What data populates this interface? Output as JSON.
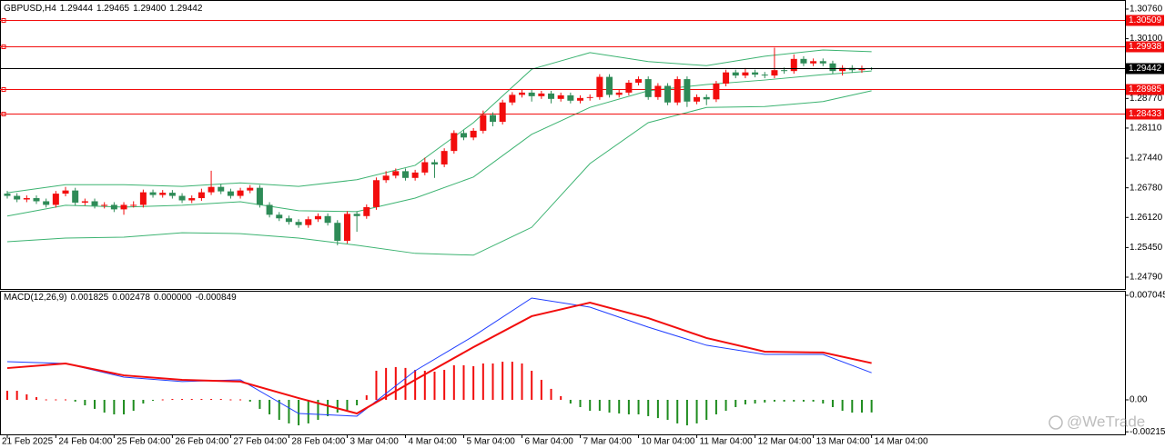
{
  "chart_data": [
    {
      "type": "candlestick",
      "header": {
        "symbol": "GBPUSD,H4",
        "values": [
          1.29444,
          1.29465,
          {
            "value": 1.294,
            "label": "1.29400"
          },
          1.29442
        ]
      },
      "categories": [
        "21 Feb 2025",
        null,
        null,
        null,
        null,
        "24 Feb 04:00",
        null,
        null,
        null,
        null,
        null,
        "25 Feb 04:00",
        null,
        null,
        null,
        null,
        null,
        "26 Feb 04:00",
        null,
        null,
        null,
        null,
        null,
        "27 Feb 04:00",
        null,
        null,
        null,
        null,
        null,
        "28 Feb 04:00",
        null,
        null,
        null,
        null,
        null,
        "3 Mar 04:00",
        null,
        null,
        null,
        null,
        null,
        "4 Mar 04:00",
        null,
        null,
        null,
        null,
        null,
        "5 Mar 04:00",
        null,
        null,
        null,
        null,
        null,
        "6 Mar 04:00",
        null,
        null,
        null,
        null,
        null,
        "7 Mar 04:00",
        null,
        null,
        null,
        null,
        null,
        "10 Mar 04:00",
        null,
        null,
        null,
        null,
        null,
        "11 Mar 04:00",
        null,
        null,
        null,
        null,
        null,
        "12 Mar 04:00",
        null,
        null,
        null,
        null,
        null,
        "13 Mar 04:00",
        null,
        null,
        null,
        null,
        null,
        "14 Mar 04:00"
      ],
      "ohlc": {
        "open": [
          1.2665,
          1.266,
          1.2652,
          1.2655,
          1.2648,
          1.264,
          1.2665,
          1.2672,
          1.2645,
          1.2648,
          1.2638,
          1.264,
          1.263,
          1.264,
          1.264,
          1.2668,
          1.2662,
          1.2667,
          1.266,
          1.265,
          1.2655,
          1.2668,
          1.268,
          1.267,
          1.266,
          1.2672,
          1.2678,
          1.264,
          1.2618,
          1.261,
          1.2602,
          1.2595,
          1.2608,
          1.2615,
          1.26,
          1.256,
          1.262,
          1.2615,
          1.2635,
          1.2695,
          1.2705,
          1.2715,
          1.27,
          1.2712,
          1.2735,
          1.273,
          1.276,
          1.28,
          1.279,
          1.2805,
          1.284,
          1.2825,
          1.2868,
          1.2885,
          1.289,
          1.2882,
          1.2888,
          1.2876,
          1.2884,
          1.2872,
          1.2878,
          1.288,
          1.2925,
          1.2885,
          1.289,
          1.2912,
          1.292,
          1.288,
          1.2905,
          1.2868,
          1.292,
          1.287,
          1.288,
          1.2875,
          1.291,
          1.2935,
          1.2928,
          1.2935,
          1.293,
          1.2928,
          1.294,
          1.2938,
          1.2965,
          1.2955,
          1.296,
          1.2955,
          1.2938,
          1.2945,
          1.294,
          1.29444
        ],
        "high": [
          1.2671,
          1.2666,
          1.2661,
          1.2661,
          1.2654,
          1.2671,
          1.268,
          1.2678,
          1.2654,
          1.2654,
          1.2646,
          1.2646,
          1.2646,
          1.2648,
          1.2674,
          1.2674,
          1.2673,
          1.2673,
          1.2666,
          1.2661,
          1.2676,
          1.2716,
          1.2686,
          1.2676,
          1.2678,
          1.2684,
          1.2684,
          1.2646,
          1.2624,
          1.2616,
          1.2608,
          1.2614,
          1.2621,
          1.2621,
          1.2606,
          1.2626,
          1.2626,
          1.2641,
          1.2701,
          1.2715,
          1.2721,
          1.2721,
          1.2718,
          1.2745,
          1.2741,
          1.2766,
          1.2806,
          1.2806,
          1.2811,
          1.285,
          1.2846,
          1.2874,
          1.2891,
          1.2896,
          1.2896,
          1.2894,
          1.2894,
          1.289,
          1.289,
          1.2884,
          1.2886,
          1.2931,
          1.2931,
          1.2896,
          1.2918,
          1.2926,
          1.2926,
          1.2911,
          1.2911,
          1.2926,
          1.2926,
          1.2886,
          1.2886,
          1.2916,
          1.2941,
          1.2941,
          1.2945,
          1.2941,
          1.2936,
          1.299,
          1.2946,
          1.2975,
          1.2971,
          1.2966,
          1.2966,
          1.2961,
          1.2951,
          1.2951,
          1.295,
          1.29465
        ],
        "low": [
          1.2654,
          1.2646,
          1.2646,
          1.2642,
          1.2634,
          1.2634,
          1.2659,
          1.2639,
          1.2639,
          1.2632,
          1.2632,
          1.2624,
          1.2618,
          1.2634,
          1.2634,
          1.2656,
          1.2656,
          1.2654,
          1.2644,
          1.2644,
          1.2649,
          1.2662,
          1.2664,
          1.2654,
          1.2654,
          1.2666,
          1.2634,
          1.2612,
          1.2604,
          1.2596,
          1.2589,
          1.2589,
          1.2602,
          1.2594,
          1.255,
          1.2554,
          1.258,
          1.2609,
          1.2629,
          1.2689,
          1.2699,
          1.2694,
          1.2694,
          1.2706,
          1.27,
          1.2724,
          1.2754,
          1.2784,
          1.2784,
          1.2799,
          1.2815,
          1.2819,
          1.2862,
          1.2879,
          1.287,
          1.2876,
          1.2866,
          1.287,
          1.2866,
          1.2866,
          1.2872,
          1.2874,
          1.2879,
          1.2879,
          1.2884,
          1.2906,
          1.2874,
          1.2874,
          1.2862,
          1.2862,
          1.2858,
          1.2864,
          1.2862,
          1.2869,
          1.2904,
          1.2922,
          1.2922,
          1.2924,
          1.2922,
          1.2922,
          1.2932,
          1.2932,
          1.2949,
          1.2949,
          1.2949,
          1.2932,
          1.2928,
          1.2934,
          1.2934,
          1.294
        ],
        "close": [
          1.266,
          1.2652,
          1.2655,
          1.2648,
          1.264,
          1.2665,
          1.2672,
          1.2645,
          1.2648,
          1.2638,
          1.264,
          1.263,
          1.264,
          1.264,
          1.2668,
          1.2662,
          1.2667,
          1.266,
          1.265,
          1.2655,
          1.2668,
          1.268,
          1.267,
          1.266,
          1.2672,
          1.2678,
          1.264,
          1.2618,
          1.261,
          1.2602,
          1.2595,
          1.2608,
          1.2615,
          1.26,
          1.256,
          1.262,
          1.2615,
          1.2635,
          1.2695,
          1.2705,
          1.2715,
          1.27,
          1.2712,
          1.2735,
          1.273,
          1.276,
          1.28,
          1.279,
          1.2805,
          1.284,
          1.2825,
          1.2868,
          1.2885,
          1.289,
          1.2882,
          1.2888,
          1.2876,
          1.2884,
          1.2872,
          1.2878,
          1.288,
          1.2925,
          1.2885,
          1.289,
          1.2912,
          1.292,
          1.288,
          1.2905,
          1.2868,
          1.292,
          1.287,
          1.288,
          1.2875,
          1.291,
          1.2935,
          1.2928,
          1.2935,
          1.293,
          1.2928,
          1.294,
          1.2938,
          1.2965,
          1.2955,
          1.296,
          1.2955,
          1.2938,
          1.2945,
          1.294,
          1.2944,
          1.29442
        ]
      },
      "up_color": "#f20d0d",
      "down_color": "#2e8b57",
      "ylim": [
        1.24527,
        1.30962
      ],
      "yticks": [
        {
          "value": 1.3076,
          "label": "1.30760"
        },
        {
          "value": 1.301,
          "label": "1.30100"
        },
        {
          "value": 1.2877,
          "label": "1.28770"
        },
        {
          "value": 1.2811,
          "label": "1.28110"
        },
        {
          "value": 1.2744,
          "label": "1.27440"
        },
        {
          "value": 1.2678,
          "label": "1.26780"
        },
        {
          "value": 1.2612,
          "label": "1.26120"
        },
        {
          "value": 1.2545,
          "label": "1.25450"
        },
        {
          "value": 1.2479,
          "label": "1.24790"
        }
      ],
      "levels": [
        1.30509,
        1.29938,
        1.28985,
        1.28433
      ],
      "level_color": "#f20d0d",
      "last_price_color": "#000000",
      "bands": {
        "color": "#3cb371",
        "x": [
          0,
          6,
          12,
          18,
          24,
          30,
          36,
          42,
          48,
          54,
          60,
          66,
          72,
          78,
          84,
          89
        ],
        "upper": [
          1.2667,
          1.2685,
          1.2685,
          1.2681,
          1.2689,
          1.2681,
          1.2696,
          1.2728,
          1.2823,
          1.2942,
          1.2979,
          1.2959,
          1.295,
          1.2971,
          1.2985,
          1.2981
        ],
        "middle": [
          1.2615,
          1.2639,
          1.2635,
          1.2639,
          1.2647,
          1.2627,
          1.2625,
          1.2655,
          1.2702,
          1.2797,
          1.2857,
          1.2894,
          1.2908,
          1.2918,
          1.293,
          1.2938
        ],
        "lower": [
          1.2558,
          1.2566,
          1.2568,
          1.2578,
          1.2576,
          1.2566,
          1.255,
          1.2532,
          1.2528,
          1.259,
          1.2732,
          1.2823,
          1.2857,
          1.2859,
          1.287,
          1.2894
        ]
      }
    },
    {
      "type": "macd",
      "header": {
        "title": "MACD(12,26,9)",
        "values": [
          0.001825,
          0.002478,
          {
            "value": 0,
            "label": "0.000000"
          },
          -0.000849
        ]
      },
      "ylim": [
        -0.002328,
        0.007351
      ],
      "yticks": [
        0.007045,
        {
          "value": 0,
          "label": "0.00"
        },
        -0.002155
      ],
      "x": [
        0,
        6,
        12,
        18,
        24,
        30,
        36,
        42,
        48,
        54,
        60,
        66,
        72,
        78,
        84,
        89
      ],
      "series": [
        {
          "color": "#1e3cff",
          "values": [
            0.00257,
            0.00245,
            0.00153,
            0.00123,
            0.00135,
            -0.00092,
            -0.0011,
            0.00196,
            0.00429,
            0.00686,
            0.00625,
            0.0049,
            0.00368,
            0.00306,
            0.00306,
            0.001825
          ]
        },
        {
          "color": "#f20d0d",
          "values": [
            0.00214,
            0.00245,
            0.00165,
            0.00135,
            0.00123,
            0.00012,
            -0.00092,
            0.00135,
            0.00355,
            0.00564,
            0.00655,
            0.00551,
            0.00417,
            0.00325,
            0.00319,
            0.002478
          ]
        }
      ],
      "histogram": {
        "up_color": "#f20d0d",
        "down_color": "#1e8c1e",
        "values": [
          0.00061,
          0.00061,
          0.00037,
          0.00018,
          3e-05,
          3e-05,
          3e-05,
          -0.00012,
          -0.00037,
          -0.00061,
          -0.00086,
          -0.00098,
          -0.00098,
          -0.00074,
          -0.00025,
          -6e-05,
          3e-05,
          6e-05,
          6e-05,
          6e-05,
          6e-05,
          6e-05,
          6e-05,
          3e-05,
          3e-05,
          -0.00012,
          -0.00061,
          -0.00098,
          -0.00135,
          -0.00159,
          -0.00172,
          -0.00159,
          -0.00135,
          -0.0011,
          -0.00086,
          -0.00074,
          -0.00037,
          0.00031,
          0.00196,
          0.00215,
          0.00221,
          0.00215,
          0.00202,
          0.00196,
          0.0019,
          0.00202,
          0.00233,
          0.00233,
          0.00227,
          0.00245,
          0.00245,
          0.00257,
          0.00257,
          0.00245,
          0.00196,
          0.00135,
          0.00074,
          0.00025,
          -0.00025,
          -0.00049,
          -0.00074,
          -0.00074,
          -0.00086,
          -0.00092,
          -0.00098,
          -0.00098,
          -0.0011,
          -0.00123,
          -0.00135,
          -0.00159,
          -0.00172,
          -0.00159,
          -0.00135,
          -0.00098,
          -0.00074,
          -0.00049,
          -0.00031,
          -0.00025,
          -0.00018,
          -0.00012,
          -0.00012,
          -0.00012,
          -0.00012,
          -0.00012,
          -0.00025,
          -0.00049,
          -0.00074,
          -0.00086,
          -0.00086,
          -0.000849
        ]
      }
    }
  ],
  "watermark": "@WeTrade"
}
